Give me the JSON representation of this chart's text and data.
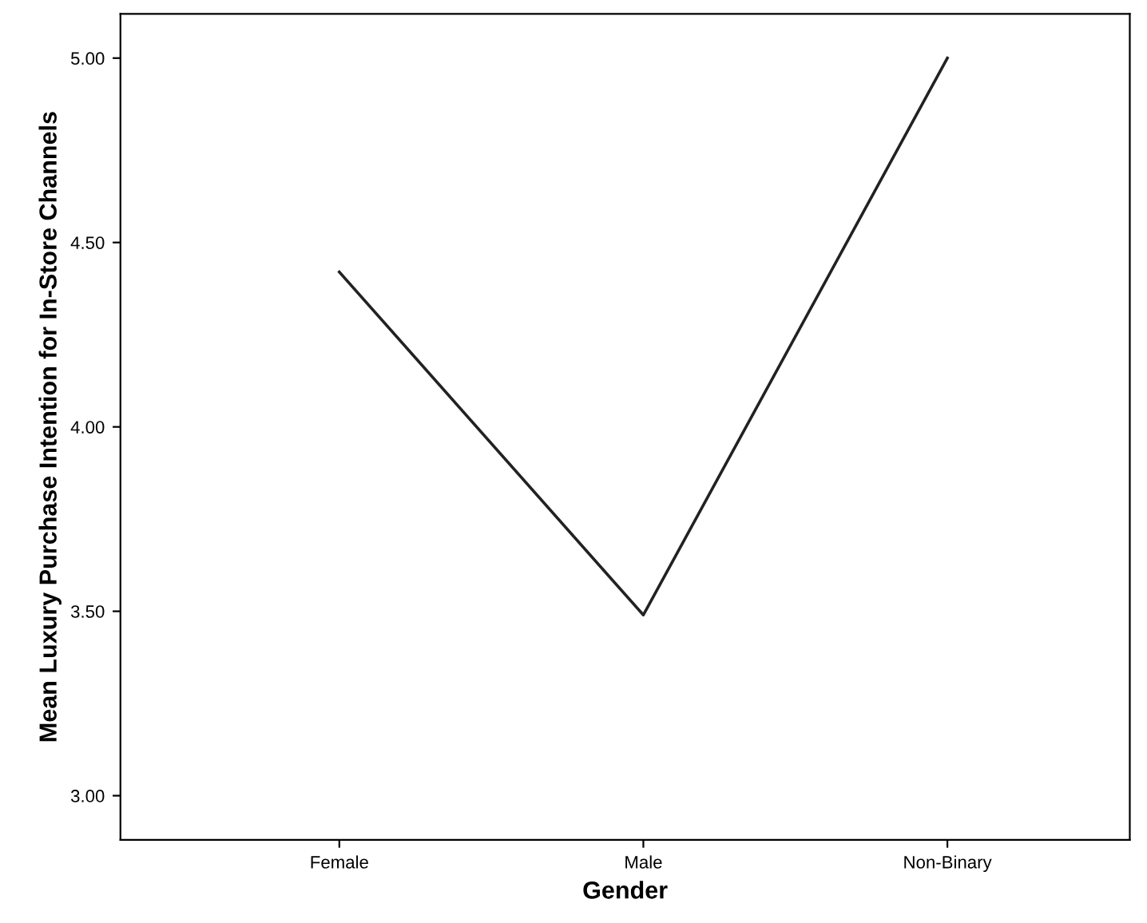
{
  "chart_data": {
    "type": "line",
    "xlabel": "Gender",
    "ylabel": "Mean Luxury Purchase Intention for In-Store Channels",
    "categories": [
      "Female",
      "Male",
      "Non-Binary"
    ],
    "series": [
      {
        "color": "#222222",
        "values": [
          4.42,
          3.49,
          5.0
        ]
      }
    ],
    "ylim": [
      2.88,
      5.12
    ],
    "yticks": [
      {
        "value": 3.0,
        "label": "3.00"
      },
      {
        "value": 3.5,
        "label": "3.50"
      },
      {
        "value": 4.0,
        "label": "4.00"
      },
      {
        "value": 4.5,
        "label": "4.50"
      },
      {
        "value": 5.0,
        "label": "5.00"
      }
    ],
    "grid": false,
    "marker": "none",
    "line_style": "solid"
  }
}
